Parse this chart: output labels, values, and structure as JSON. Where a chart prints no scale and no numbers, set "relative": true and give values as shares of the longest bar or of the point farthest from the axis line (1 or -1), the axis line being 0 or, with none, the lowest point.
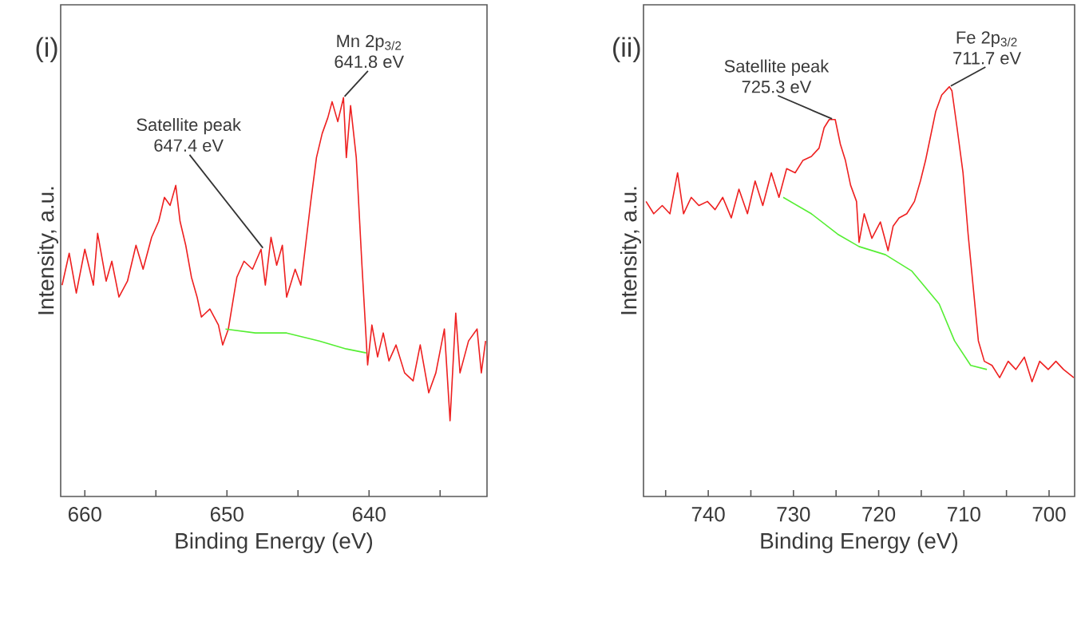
{
  "chart_data": [
    {
      "type": "line",
      "title": "(i)",
      "xlabel": "Binding Energy (eV)",
      "ylabel": "Intensity, a.u.",
      "relative": true,
      "xlim": [
        661.7,
        631.7
      ],
      "xticks": [
        660,
        {
          "value": 655,
          "label": null
        },
        650,
        {
          "value": 645,
          "label": null
        },
        640,
        {
          "value": 635,
          "label": null
        }
      ],
      "series": [
        {
          "color": "#ee2020",
          "x": [
            661.6,
            661.1,
            660.6,
            660.0,
            659.4,
            659.1,
            658.5,
            658.1,
            657.6,
            657.0,
            656.4,
            655.9,
            655.3,
            654.8,
            654.4,
            654.0,
            653.6,
            653.3,
            652.9,
            652.5,
            652.1,
            651.8,
            651.2,
            650.6,
            650.3,
            649.9,
            649.3,
            648.8,
            648.2,
            647.6,
            647.3,
            646.9,
            646.5,
            646.1,
            645.8,
            645.2,
            644.8,
            644.4,
            644.1,
            643.7,
            643.3,
            642.9,
            642.6,
            642.2,
            641.8,
            641.6,
            641.3,
            640.9,
            640.5,
            640.1,
            639.8,
            639.4,
            639.0,
            638.6,
            638.1,
            637.5,
            636.9,
            636.4,
            635.8,
            635.3,
            634.7,
            634.3,
            633.9,
            633.6,
            633.0,
            632.4,
            632.1,
            631.8
          ],
          "values": [
            0.53,
            0.61,
            0.51,
            0.62,
            0.53,
            0.66,
            0.54,
            0.59,
            0.5,
            0.54,
            0.63,
            0.57,
            0.65,
            0.69,
            0.75,
            0.73,
            0.78,
            0.69,
            0.63,
            0.55,
            0.5,
            0.45,
            0.47,
            0.43,
            0.38,
            0.42,
            0.55,
            0.59,
            0.57,
            0.62,
            0.53,
            0.65,
            0.58,
            0.63,
            0.5,
            0.57,
            0.53,
            0.65,
            0.74,
            0.85,
            0.91,
            0.95,
            0.99,
            0.94,
            1.0,
            0.85,
            0.98,
            0.85,
            0.58,
            0.33,
            0.43,
            0.35,
            0.41,
            0.34,
            0.38,
            0.31,
            0.29,
            0.38,
            0.26,
            0.31,
            0.42,
            0.19,
            0.46,
            0.31,
            0.39,
            0.42,
            0.31,
            0.39
          ]
        },
        {
          "color": "#55ee33",
          "x": [
            650.1,
            648.0,
            645.8,
            643.5,
            641.6,
            640.2
          ],
          "values": [
            0.42,
            0.41,
            0.41,
            0.39,
            0.37,
            0.36
          ]
        }
      ],
      "annotations": [
        {
          "text": "Satellite peak 647.4 eV",
          "x": 647.4,
          "y": 0.62
        },
        {
          "text": "Mn 2p$_{3/2}$ 641.8 eV",
          "x": 641.8,
          "y": 1.0
        }
      ]
    },
    {
      "type": "line",
      "title": "(ii)",
      "xlabel": "Binding Energy (eV)",
      "ylabel": "Intensity, a.u.",
      "relative": true,
      "xlim": [
        747.6,
        697.0
      ],
      "xticks": [
        {
          "value": 745,
          "label": null
        },
        740,
        {
          "value": 735,
          "label": null
        },
        730,
        {
          "value": 725,
          "label": null
        },
        720,
        {
          "value": 715,
          "label": null
        },
        710,
        {
          "value": 705,
          "label": null
        },
        700
      ],
      "series": [
        {
          "color": "#ee2020",
          "x": [
            747.3,
            746.4,
            745.4,
            744.5,
            743.6,
            742.9,
            742.0,
            741.1,
            740.1,
            739.2,
            738.3,
            737.3,
            736.4,
            735.4,
            734.5,
            733.6,
            732.6,
            731.7,
            730.8,
            729.8,
            728.9,
            727.9,
            727.0,
            726.4,
            725.8,
            725.1,
            724.5,
            723.9,
            723.3,
            722.6,
            722.3,
            721.7,
            720.8,
            719.8,
            718.9,
            718.3,
            717.6,
            716.7,
            715.8,
            715.1,
            714.5,
            713.9,
            713.3,
            712.6,
            711.7,
            711.4,
            710.8,
            710.1,
            709.5,
            708.9,
            708.3,
            707.6,
            706.7,
            705.8,
            704.8,
            703.9,
            702.9,
            702.0,
            701.1,
            700.1,
            699.2,
            698.3,
            697.1
          ],
          "values": [
            0.72,
            0.69,
            0.71,
            0.69,
            0.79,
            0.69,
            0.73,
            0.71,
            0.72,
            0.7,
            0.73,
            0.68,
            0.75,
            0.69,
            0.77,
            0.71,
            0.79,
            0.73,
            0.8,
            0.79,
            0.82,
            0.83,
            0.85,
            0.9,
            0.92,
            0.92,
            0.86,
            0.82,
            0.76,
            0.72,
            0.62,
            0.69,
            0.63,
            0.67,
            0.6,
            0.66,
            0.68,
            0.69,
            0.72,
            0.77,
            0.82,
            0.88,
            0.94,
            0.98,
            1.0,
            0.99,
            0.9,
            0.79,
            0.64,
            0.51,
            0.38,
            0.33,
            0.32,
            0.29,
            0.33,
            0.31,
            0.34,
            0.28,
            0.33,
            0.31,
            0.33,
            0.31,
            0.29
          ]
        },
        {
          "color": "#55ee33",
          "x": [
            731.2,
            727.9,
            724.8,
            722.3,
            719.2,
            716.1,
            712.9,
            711.1,
            709.2,
            707.3
          ],
          "values": [
            0.73,
            0.69,
            0.64,
            0.61,
            0.59,
            0.55,
            0.47,
            0.38,
            0.32,
            0.31
          ]
        }
      ],
      "annotations": [
        {
          "text": "Satellite peak 725.3 eV",
          "x": 725.3,
          "y": 0.92
        },
        {
          "text": "Fe 2p$_{3/2}$ 711.7 eV",
          "x": 711.7,
          "y": 1.0
        }
      ]
    }
  ]
}
